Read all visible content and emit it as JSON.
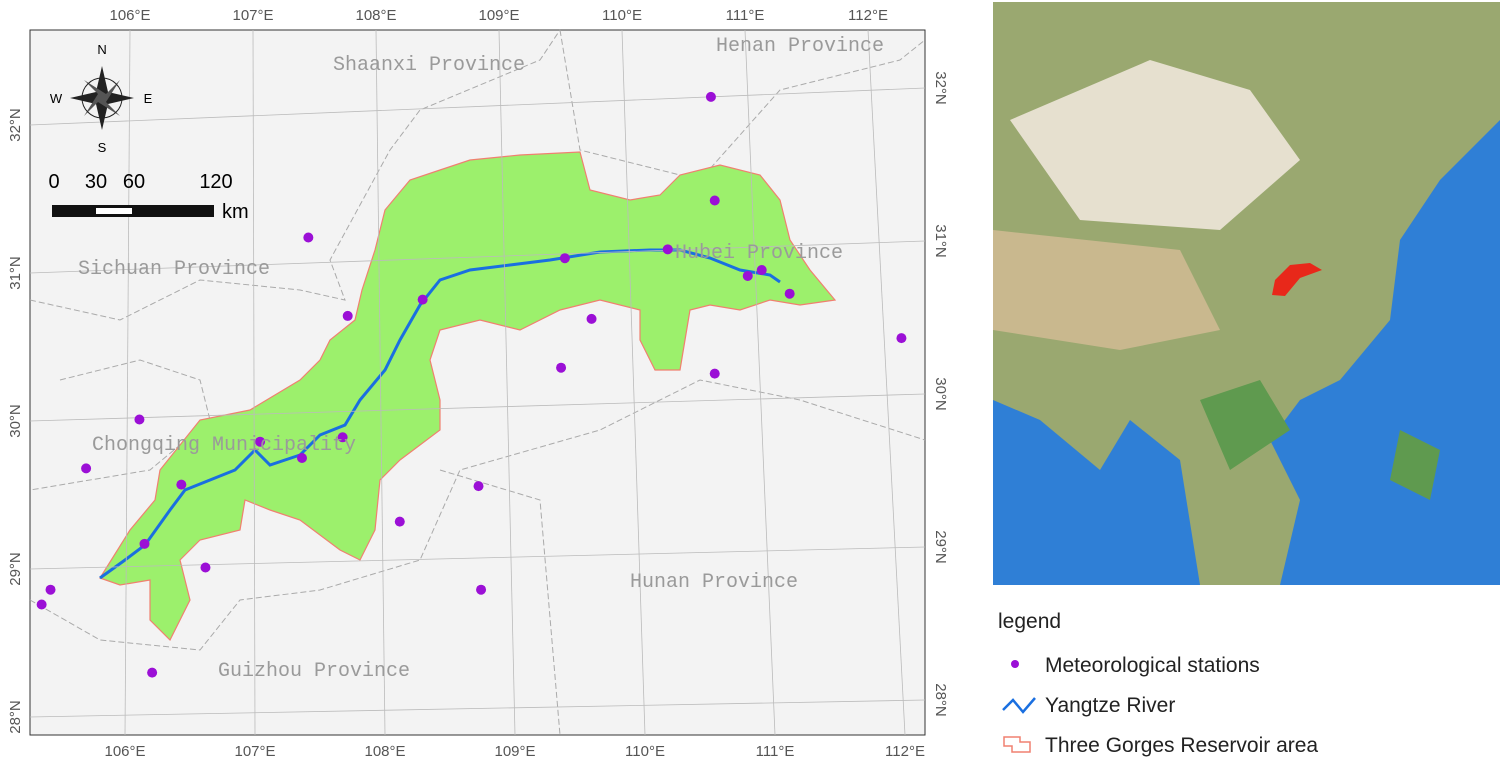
{
  "map": {
    "lon_ticks": [
      {
        "value": 106,
        "label": "106°E"
      },
      {
        "value": 107,
        "label": "107°E"
      },
      {
        "value": 108,
        "label": "108°E"
      },
      {
        "value": 109,
        "label": "109°E"
      },
      {
        "value": 110,
        "label": "110°E"
      },
      {
        "value": 111,
        "label": "111°E"
      },
      {
        "value": 112,
        "label": "112°E"
      }
    ],
    "lat_ticks": [
      {
        "value": 28,
        "label": "28°N"
      },
      {
        "value": 29,
        "label": "29°N"
      },
      {
        "value": 30,
        "label": "30°N"
      },
      {
        "value": 31,
        "label": "31°N"
      },
      {
        "value": 32,
        "label": "32°N"
      }
    ],
    "regions": [
      "Shaanxi Province",
      "Henan Province",
      "Sichuan Province",
      "Hubei Province",
      "Chongqing Municipality",
      "Hunan Province",
      "Guizhou Province"
    ],
    "stations": [
      [
        110.59,
        32.19
      ],
      [
        110.62,
        31.49
      ],
      [
        107.42,
        31.24
      ],
      [
        109.44,
        31.1
      ],
      [
        110.25,
        31.16
      ],
      [
        110.99,
        31.02
      ],
      [
        110.88,
        30.98
      ],
      [
        111.21,
        30.86
      ],
      [
        108.32,
        30.82
      ],
      [
        107.73,
        30.71
      ],
      [
        109.65,
        30.69
      ],
      [
        112.09,
        30.56
      ],
      [
        109.41,
        30.36
      ],
      [
        110.62,
        30.32
      ],
      [
        106.09,
        30.01
      ],
      [
        107.04,
        29.86
      ],
      [
        107.69,
        29.89
      ],
      [
        105.67,
        29.68
      ],
      [
        107.37,
        29.75
      ],
      [
        106.42,
        29.57
      ],
      [
        108.76,
        29.56
      ],
      [
        108.14,
        29.32
      ],
      [
        106.13,
        29.17
      ],
      [
        106.61,
        29.01
      ],
      [
        105.39,
        28.86
      ],
      [
        105.32,
        28.76
      ],
      [
        108.78,
        28.86
      ],
      [
        106.19,
        28.3
      ]
    ],
    "compass": {
      "n": "N",
      "s": "S",
      "e": "E",
      "w": "W"
    },
    "scale_bar": {
      "labels": [
        "0",
        "30",
        "60",
        "120"
      ],
      "unit": "km"
    },
    "legend": {
      "title": "legend",
      "items": [
        "Meteorological stations",
        "Yangtze River",
        "Three Gorges Reservoir area"
      ]
    }
  }
}
